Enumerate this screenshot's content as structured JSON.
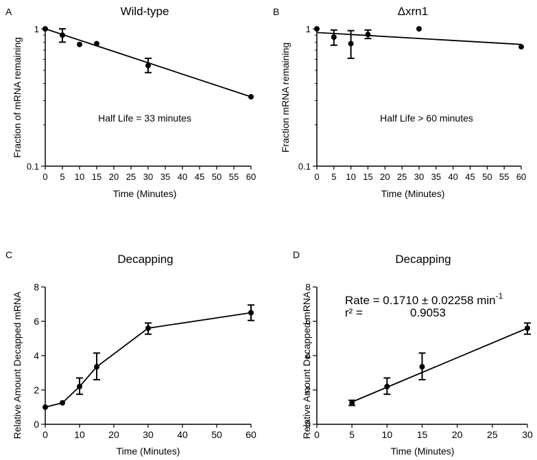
{
  "chart_data": [
    {
      "panel_letter": "A",
      "type": "scatter",
      "title": "Wild-type",
      "xlabel": "Time (Minutes)",
      "ylabel": "Fraction of mRNA remaining",
      "x_scale": "linear",
      "y_scale": "log",
      "xlim": [
        0,
        60
      ],
      "ylim": [
        0.1,
        1
      ],
      "x_ticks": [
        0,
        5,
        10,
        15,
        20,
        25,
        30,
        35,
        40,
        45,
        50,
        55,
        60
      ],
      "x_tick_labels": [
        "0",
        "5",
        "10",
        "15",
        "20",
        "25",
        "30",
        "35",
        "40",
        "45",
        "50",
        "55",
        "60"
      ],
      "y_ticks": [
        0.1,
        1
      ],
      "y_tick_labels": [
        "0.1",
        "1"
      ],
      "annotation": "Half Life = 33 minutes",
      "points": [
        {
          "x": 0,
          "y": 1.0,
          "err_lo": null,
          "err_hi": null
        },
        {
          "x": 5,
          "y": 0.9,
          "err_lo": 0.8,
          "err_hi": 1.0
        },
        {
          "x": 10,
          "y": 0.77,
          "err_lo": null,
          "err_hi": null
        },
        {
          "x": 15,
          "y": 0.78,
          "err_lo": null,
          "err_hi": null
        },
        {
          "x": 30,
          "y": 0.54,
          "err_lo": 0.48,
          "err_hi": 0.61
        },
        {
          "x": 60,
          "y": 0.32,
          "err_lo": null,
          "err_hi": null
        }
      ],
      "fit_line": [
        [
          0,
          1.0
        ],
        [
          60,
          0.32
        ]
      ]
    },
    {
      "panel_letter": "B",
      "type": "scatter",
      "title": "Δxrn1",
      "xlabel": "Time (Minutes)",
      "ylabel": "Fraction mRNA remaining",
      "x_scale": "linear",
      "y_scale": "log",
      "xlim": [
        0,
        60
      ],
      "ylim": [
        0.1,
        1
      ],
      "x_ticks": [
        0,
        5,
        10,
        15,
        20,
        25,
        30,
        35,
        40,
        45,
        50,
        55,
        60
      ],
      "x_tick_labels": [
        "0",
        "5",
        "10",
        "15",
        "20",
        "25",
        "30",
        "35",
        "40",
        "45",
        "50",
        "55",
        "60"
      ],
      "y_ticks": [
        0.1,
        1
      ],
      "y_tick_labels": [
        "0.1",
        "1"
      ],
      "annotation": "Half Life > 60 minutes",
      "points": [
        {
          "x": 0,
          "y": 1.0,
          "err_lo": null,
          "err_hi": null
        },
        {
          "x": 5,
          "y": 0.87,
          "err_lo": 0.76,
          "err_hi": 0.98
        },
        {
          "x": 10,
          "y": 0.78,
          "err_lo": 0.61,
          "err_hi": 0.97
        },
        {
          "x": 15,
          "y": 0.91,
          "err_lo": 0.85,
          "err_hi": 0.98
        },
        {
          "x": 30,
          "y": 1.0,
          "err_lo": null,
          "err_hi": null
        },
        {
          "x": 60,
          "y": 0.74,
          "err_lo": null,
          "err_hi": null
        }
      ],
      "fit_line": [
        [
          0,
          0.94
        ],
        [
          60,
          0.77
        ]
      ]
    },
    {
      "panel_letter": "C",
      "type": "line",
      "title": "Decapping",
      "xlabel": "Time (Minutes)",
      "ylabel": "Relative Amount Decapped mRNA",
      "x_scale": "linear",
      "y_scale": "linear",
      "xlim": [
        0,
        60
      ],
      "ylim": [
        0,
        8
      ],
      "x_ticks": [
        0,
        10,
        20,
        30,
        40,
        50,
        60
      ],
      "x_tick_labels": [
        "0",
        "10",
        "20",
        "30",
        "40",
        "50",
        "60"
      ],
      "y_ticks": [
        0,
        2,
        4,
        6,
        8
      ],
      "y_tick_labels": [
        "0",
        "2",
        "4",
        "6",
        "8"
      ],
      "annotation": "",
      "points": [
        {
          "x": 0,
          "y": 1.0,
          "err_lo": null,
          "err_hi": null
        },
        {
          "x": 5,
          "y": 1.25,
          "err_lo": null,
          "err_hi": null
        },
        {
          "x": 10,
          "y": 2.2,
          "err_lo": 1.75,
          "err_hi": 2.7
        },
        {
          "x": 15,
          "y": 3.35,
          "err_lo": 2.6,
          "err_hi": 4.15
        },
        {
          "x": 30,
          "y": 5.6,
          "err_lo": 5.25,
          "err_hi": 5.9
        },
        {
          "x": 60,
          "y": 6.5,
          "err_lo": 6.05,
          "err_hi": 6.95
        }
      ],
      "connect_points": true
    },
    {
      "panel_letter": "D",
      "type": "scatter",
      "title": "Decapping",
      "xlabel": "Time (Minutes)",
      "ylabel": "Relative Amount Decapped mRNA",
      "x_scale": "linear",
      "y_scale": "linear",
      "xlim": [
        0,
        30
      ],
      "ylim": [
        0,
        8
      ],
      "x_ticks": [
        0,
        5,
        10,
        15,
        20,
        25,
        30
      ],
      "x_tick_labels": [
        "0",
        "5",
        "10",
        "15",
        "20",
        "25",
        "30"
      ],
      "y_ticks": [
        0,
        2,
        4,
        6,
        8
      ],
      "y_tick_labels": [
        "0",
        "2",
        "4",
        "6",
        "8"
      ],
      "rate_text": "Rate = 0.1710 ± 0.02258 min",
      "rate_superscript": "-1",
      "r2_label": "r² =",
      "r2_value": "0.9053",
      "points": [
        {
          "x": 5,
          "y": 1.25,
          "err_lo": 1.1,
          "err_hi": 1.4
        },
        {
          "x": 10,
          "y": 2.2,
          "err_lo": 1.75,
          "err_hi": 2.7
        },
        {
          "x": 15,
          "y": 3.35,
          "err_lo": 2.6,
          "err_hi": 4.15
        },
        {
          "x": 30,
          "y": 5.6,
          "err_lo": 5.25,
          "err_hi": 5.9
        }
      ],
      "fit_line": [
        [
          5,
          1.3
        ],
        [
          30,
          5.6
        ]
      ]
    }
  ]
}
